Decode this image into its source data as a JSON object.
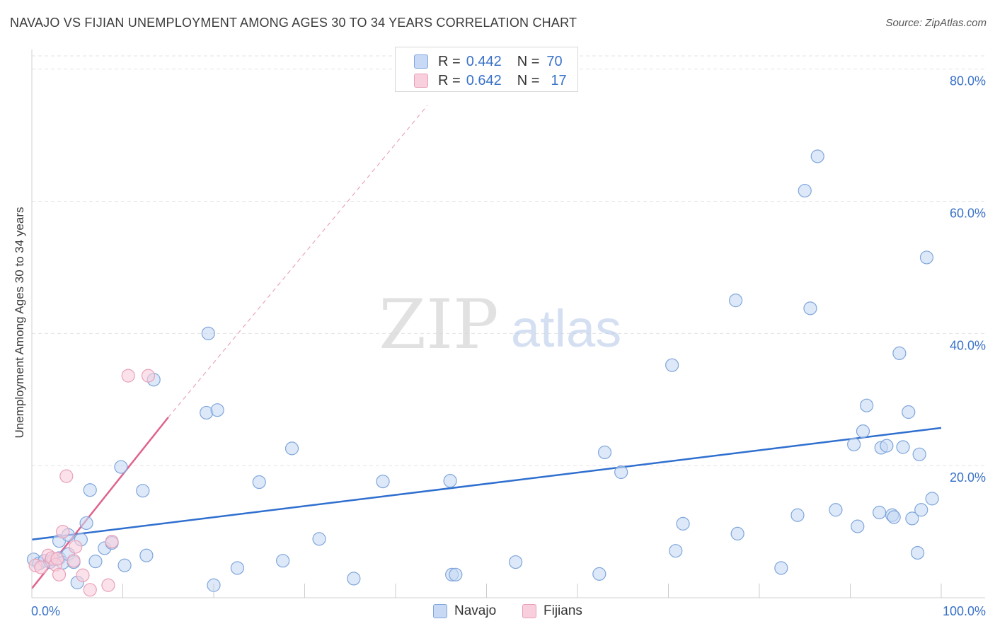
{
  "header": {
    "title": "NAVAJO VS FIJIAN UNEMPLOYMENT AMONG AGES 30 TO 34 YEARS CORRELATION CHART",
    "source": "Source: ZipAtlas.com"
  },
  "watermark": {
    "zip": "ZIP",
    "atlas": "atlas"
  },
  "legend": {
    "navajo": {
      "r_label": "R =",
      "r_value": "0.442",
      "n_label": "N =",
      "n_value": "70"
    },
    "fijians": {
      "r_label": "R =",
      "r_value": "0.642",
      "n_label": "N =",
      "n_value": "17"
    }
  },
  "bottom_legend": {
    "navajo": "Navajo",
    "fijians": "Fijians"
  },
  "colors": {
    "navajo_fill": "#c7d9f4",
    "navajo_stroke": "#7fa6dc",
    "navajo_line": "#2f6fcf",
    "fijians_fill": "#f8cfdc",
    "fijians_stroke": "#e8a0b8",
    "fijians_line": "#e0628e",
    "axis_label": "#3a72c8",
    "grid": "#e3e3e3"
  },
  "chart_data": {
    "type": "scatter",
    "title": "NAVAJO VS FIJIAN UNEMPLOYMENT AMONG AGES 30 TO 34 YEARS CORRELATION CHART",
    "xlabel": "",
    "ylabel": "Unemployment Among Ages 30 to 34 years",
    "xlim": [
      0,
      100
    ],
    "ylim": [
      0,
      82
    ],
    "x_tick_labels": [
      {
        "value": 0,
        "label": "0.0%"
      },
      {
        "value": 100,
        "label": "100.0%"
      }
    ],
    "y_tick_labels": [
      {
        "value": 20,
        "label": "20.0%"
      },
      {
        "value": 40,
        "label": "40.0%"
      },
      {
        "value": 60,
        "label": "60.0%"
      },
      {
        "value": 80,
        "label": "80.0%"
      }
    ],
    "grid": true,
    "series": [
      {
        "name": "Navajo",
        "r": 0.442,
        "n": 70,
        "trend": {
          "x": [
            0,
            100
          ],
          "y": [
            8.8,
            25.7
          ],
          "dashed": false
        },
        "points": [
          [
            0.2,
            5.8
          ],
          [
            0.8,
            5.2
          ],
          [
            1.4,
            5.6
          ],
          [
            2.0,
            5.4
          ],
          [
            2.4,
            5.8
          ],
          [
            3.0,
            6.0
          ],
          [
            3.4,
            5.3
          ],
          [
            4.0,
            6.6
          ],
          [
            3.0,
            8.6
          ],
          [
            4.0,
            9.5
          ],
          [
            5.4,
            8.8
          ],
          [
            6.0,
            11.3
          ],
          [
            4.6,
            5.4
          ],
          [
            5.0,
            2.3
          ],
          [
            7.0,
            5.5
          ],
          [
            8.0,
            7.5
          ],
          [
            8.8,
            8.3
          ],
          [
            9.8,
            19.8
          ],
          [
            10.2,
            4.9
          ],
          [
            12.2,
            16.2
          ],
          [
            12.6,
            6.4
          ],
          [
            6.4,
            16.3
          ],
          [
            13.4,
            33.0
          ],
          [
            19.4,
            40.0
          ],
          [
            19.2,
            28.0
          ],
          [
            20.4,
            28.4
          ],
          [
            20.0,
            1.9
          ],
          [
            22.6,
            4.5
          ],
          [
            25.0,
            17.5
          ],
          [
            27.6,
            5.6
          ],
          [
            28.6,
            22.6
          ],
          [
            31.6,
            8.9
          ],
          [
            35.4,
            2.9
          ],
          [
            38.6,
            17.6
          ],
          [
            46.2,
            3.5
          ],
          [
            46.6,
            3.5
          ],
          [
            46.0,
            17.7
          ],
          [
            53.2,
            5.4
          ],
          [
            62.4,
            3.6
          ],
          [
            63.0,
            22.0
          ],
          [
            64.8,
            19.0
          ],
          [
            70.4,
            35.2
          ],
          [
            70.8,
            7.1
          ],
          [
            71.6,
            11.2
          ],
          [
            77.4,
            45.0
          ],
          [
            77.6,
            9.7
          ],
          [
            82.4,
            4.5
          ],
          [
            84.2,
            12.5
          ],
          [
            85.0,
            61.6
          ],
          [
            85.6,
            43.8
          ],
          [
            86.4,
            66.8
          ],
          [
            88.4,
            13.3
          ],
          [
            90.4,
            23.2
          ],
          [
            90.8,
            10.8
          ],
          [
            91.4,
            25.2
          ],
          [
            91.8,
            29.1
          ],
          [
            93.2,
            12.9
          ],
          [
            93.4,
            22.7
          ],
          [
            94.0,
            23.0
          ],
          [
            94.6,
            12.5
          ],
          [
            94.8,
            12.2
          ],
          [
            95.4,
            37.0
          ],
          [
            95.8,
            22.8
          ],
          [
            96.4,
            28.1
          ],
          [
            96.8,
            12.0
          ],
          [
            97.4,
            6.8
          ],
          [
            97.6,
            21.7
          ],
          [
            97.8,
            13.3
          ],
          [
            98.4,
            51.5
          ],
          [
            99.0,
            15.0
          ]
        ]
      },
      {
        "name": "Fijians",
        "r": 0.642,
        "n": 17,
        "trend": {
          "x": [
            0,
            15
          ],
          "y": [
            1.4,
            27.3
          ],
          "dashed": false
        },
        "trend_extension": {
          "x": [
            15,
            43.5
          ],
          "y": [
            27.3,
            74.5
          ],
          "dashed": true
        },
        "points": [
          [
            0.4,
            4.9
          ],
          [
            1.0,
            4.6
          ],
          [
            1.8,
            6.4
          ],
          [
            2.2,
            6.0
          ],
          [
            2.6,
            5.0
          ],
          [
            3.0,
            3.5
          ],
          [
            3.4,
            10.0
          ],
          [
            3.8,
            18.4
          ],
          [
            4.6,
            5.6
          ],
          [
            4.8,
            7.7
          ],
          [
            5.6,
            3.4
          ],
          [
            6.4,
            1.2
          ],
          [
            8.4,
            1.9
          ],
          [
            8.8,
            8.5
          ],
          [
            10.6,
            33.6
          ],
          [
            12.8,
            33.6
          ],
          [
            2.8,
            5.9
          ]
        ]
      }
    ]
  }
}
